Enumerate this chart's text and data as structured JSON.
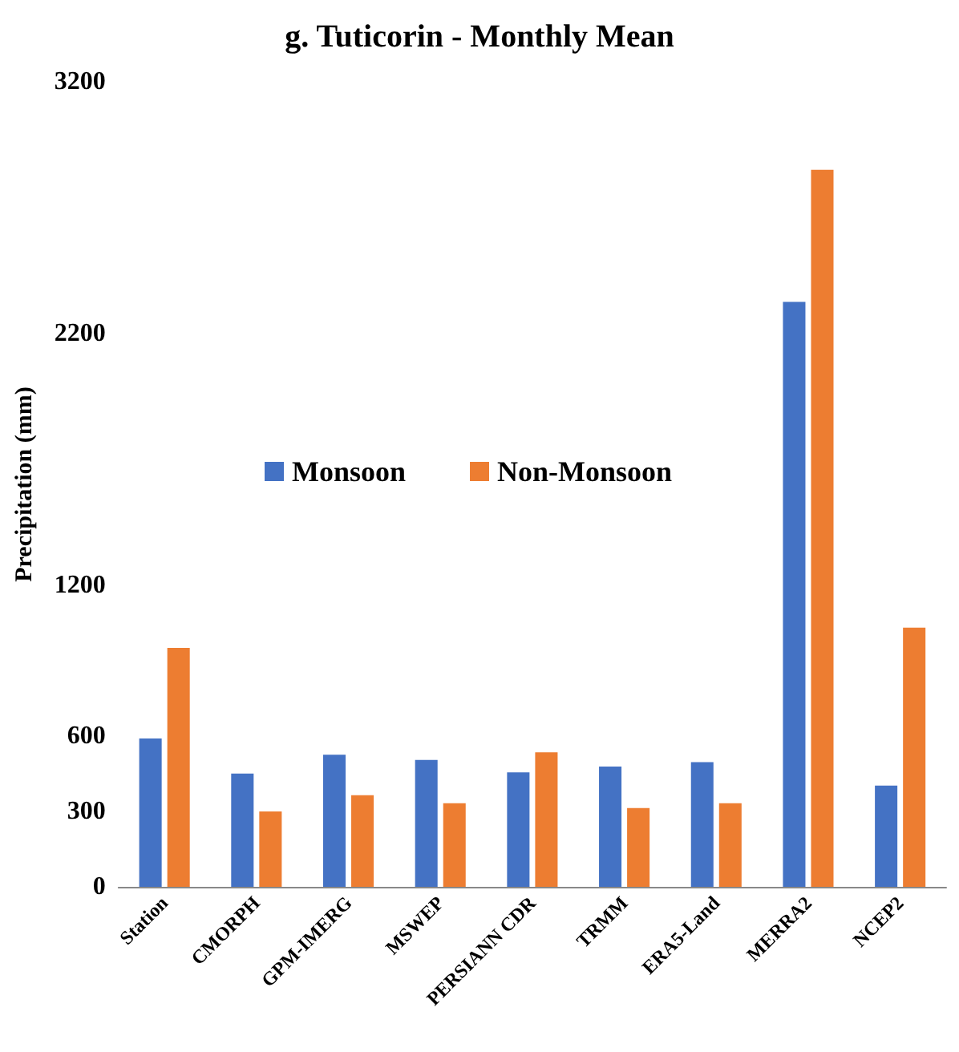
{
  "chart_data": {
    "type": "bar",
    "title": "g. Tuticorin - Monthly Mean",
    "ylabel": "Precipitation (mm)",
    "categories": [
      "Station",
      "CMORPH",
      "GPM-IMERG",
      "MSWEP",
      "PERSIANN CDR",
      "TRMM",
      "ERA5-Land",
      "MERRA2",
      "NCEP2"
    ],
    "series": [
      {
        "name": "Monsoon",
        "color": "#4472c4",
        "values": [
          590,
          450,
          525,
          504,
          455,
          478,
          496,
          2325,
          402
        ]
      },
      {
        "name": "Non-Monsoon",
        "color": "#ed7d31",
        "values": [
          950,
          300,
          364,
          332,
          535,
          313,
          332,
          2850,
          1030
        ]
      }
    ],
    "ylim": [
      0,
      3200
    ],
    "yticks": [
      0,
      300,
      600,
      1200,
      2200,
      3200
    ],
    "grid": false,
    "legend": "center left"
  }
}
